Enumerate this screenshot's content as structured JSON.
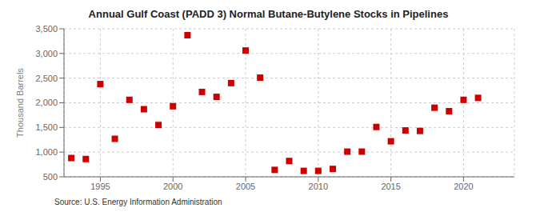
{
  "chart_data": {
    "type": "scatter",
    "title": "Annual Gulf Coast (PADD 3) Normal Butane-Butylene Stocks in Pipelines",
    "y_label": "Thousand Barrels",
    "annotations": [
      "Source: U.S. Energy Information Administration"
    ],
    "x": [
      1993,
      1994,
      1995,
      1996,
      1997,
      1998,
      1999,
      2000,
      2001,
      2002,
      2003,
      2004,
      2005,
      2006,
      2007,
      2008,
      2009,
      2010,
      2011,
      2012,
      2013,
      2014,
      2015,
      2016,
      2017,
      2018,
      2019,
      2020,
      2021
    ],
    "values": [
      880,
      860,
      2380,
      1270,
      2060,
      1870,
      1550,
      1930,
      3370,
      2220,
      2120,
      2400,
      3060,
      2510,
      640,
      820,
      620,
      620,
      660,
      1010,
      1010,
      1510,
      1220,
      1440,
      1430,
      1900,
      1830,
      2060,
      2100
    ],
    "color": "#cc0000",
    "marker": "square",
    "xlim": [
      1992.5,
      2023.5
    ],
    "xticks": [
      1995,
      2000,
      2005,
      2010,
      2015,
      2020
    ],
    "ylim": [
      500,
      3500
    ],
    "yticks": [
      500,
      {
        "value": 1000,
        "label": "1,000"
      },
      {
        "value": 1500,
        "label": "1,500"
      },
      {
        "value": 2000,
        "label": "2,000"
      },
      {
        "value": 2500,
        "label": "2,500"
      },
      {
        "value": 3000,
        "label": "3,000"
      },
      {
        "value": 3500,
        "label": "3,500"
      }
    ],
    "grid": true
  }
}
